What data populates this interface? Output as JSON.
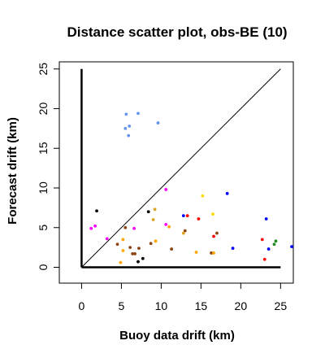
{
  "chart_data": {
    "type": "scatter",
    "title": "Distance scatter plot, obs-BE (10)",
    "xlabel": "Buoy data drift (km)",
    "ylabel": "Forecast drift (km)",
    "xlim": [
      -2.8,
      26.6
    ],
    "ylim": [
      -2.0,
      25.9
    ],
    "xticks": [
      0,
      5,
      10,
      15,
      20,
      25
    ],
    "yticks": [
      0,
      5,
      10,
      15,
      20,
      25
    ],
    "diagonal": {
      "from": [
        0,
        0
      ],
      "to": [
        25,
        25
      ]
    },
    "axes_lines": {
      "x_from": 0,
      "x_to": 25,
      "y_from": 0,
      "y_to": 25
    },
    "grid": false,
    "legend": "none",
    "points": [
      {
        "x": 5.6,
        "y": 19.3,
        "color": "#6495ED"
      },
      {
        "x": 7.1,
        "y": 19.4,
        "color": "#6495ED"
      },
      {
        "x": 6.0,
        "y": 17.8,
        "color": "#6495ED"
      },
      {
        "x": 5.5,
        "y": 17.5,
        "color": "#6495ED"
      },
      {
        "x": 5.9,
        "y": 16.6,
        "color": "#6495ED"
      },
      {
        "x": 9.6,
        "y": 18.2,
        "color": "#6495ED"
      },
      {
        "x": 1.9,
        "y": 7.1,
        "color": "#000000"
      },
      {
        "x": 1.2,
        "y": 4.9,
        "color": "#FF00FF"
      },
      {
        "x": 1.7,
        "y": 5.2,
        "color": "#FF00FF"
      },
      {
        "x": 3.2,
        "y": 3.6,
        "color": "#FF00FF"
      },
      {
        "x": 4.5,
        "y": 2.9,
        "color": "#8B4513"
      },
      {
        "x": 5.5,
        "y": 5.0,
        "color": "#8B4513"
      },
      {
        "x": 5.2,
        "y": 3.5,
        "color": "#FFA500"
      },
      {
        "x": 5.2,
        "y": 2.1,
        "color": "#FFA500"
      },
      {
        "x": 6.1,
        "y": 2.5,
        "color": "#8B4513"
      },
      {
        "x": 6.4,
        "y": 1.7,
        "color": "#8B4513"
      },
      {
        "x": 6.7,
        "y": 1.7,
        "color": "#8B4513"
      },
      {
        "x": 4.9,
        "y": 0.6,
        "color": "#FFA500"
      },
      {
        "x": 6.6,
        "y": 4.9,
        "color": "#FF00FF"
      },
      {
        "x": 7.2,
        "y": 2.4,
        "color": "#8B4513"
      },
      {
        "x": 7.7,
        "y": 1.1,
        "color": "#000000"
      },
      {
        "x": 7.1,
        "y": 0.7,
        "color": "#000000"
      },
      {
        "x": 8.4,
        "y": 7.0,
        "color": "#000000"
      },
      {
        "x": 9.2,
        "y": 7.3,
        "color": "#DAA520"
      },
      {
        "x": 9.0,
        "y": 6.0,
        "color": "#DAA520"
      },
      {
        "x": 8.7,
        "y": 3.0,
        "color": "#8B4513"
      },
      {
        "x": 9.3,
        "y": 3.3,
        "color": "#FFA500"
      },
      {
        "x": 10.6,
        "y": 9.8,
        "color": "#FF00FF"
      },
      {
        "x": 10.6,
        "y": 5.4,
        "color": "#FF00FF"
      },
      {
        "x": 11.0,
        "y": 5.1,
        "color": "#FFA500"
      },
      {
        "x": 11.3,
        "y": 2.3,
        "color": "#8B4513"
      },
      {
        "x": 12.8,
        "y": 6.5,
        "color": "#0000FF"
      },
      {
        "x": 13.3,
        "y": 6.5,
        "color": "#FF0000"
      },
      {
        "x": 13.0,
        "y": 4.6,
        "color": "#8B4513"
      },
      {
        "x": 12.8,
        "y": 4.3,
        "color": "#DAA520"
      },
      {
        "x": 14.7,
        "y": 6.1,
        "color": "#FF0000"
      },
      {
        "x": 14.4,
        "y": 1.9,
        "color": "#FFA500"
      },
      {
        "x": 15.2,
        "y": 9.0,
        "color": "#FFD700"
      },
      {
        "x": 16.5,
        "y": 6.7,
        "color": "#FFD700"
      },
      {
        "x": 16.6,
        "y": 3.9,
        "color": "#FF0000"
      },
      {
        "x": 17.0,
        "y": 4.3,
        "color": "#8B4513"
      },
      {
        "x": 16.3,
        "y": 1.8,
        "color": "#8B4513"
      },
      {
        "x": 16.6,
        "y": 1.8,
        "color": "#FFA500"
      },
      {
        "x": 18.3,
        "y": 9.3,
        "color": "#0000FF"
      },
      {
        "x": 19.0,
        "y": 2.4,
        "color": "#0000FF"
      },
      {
        "x": 22.7,
        "y": 3.5,
        "color": "#FF0000"
      },
      {
        "x": 23.0,
        "y": 1.0,
        "color": "#FF0000"
      },
      {
        "x": 23.2,
        "y": 6.1,
        "color": "#0000FF"
      },
      {
        "x": 23.5,
        "y": 2.3,
        "color": "#0000FF"
      },
      {
        "x": 24.2,
        "y": 2.9,
        "color": "#228B22"
      },
      {
        "x": 24.4,
        "y": 3.3,
        "color": "#228B22"
      },
      {
        "x": 26.4,
        "y": 2.6,
        "color": "#0000FF"
      }
    ]
  }
}
